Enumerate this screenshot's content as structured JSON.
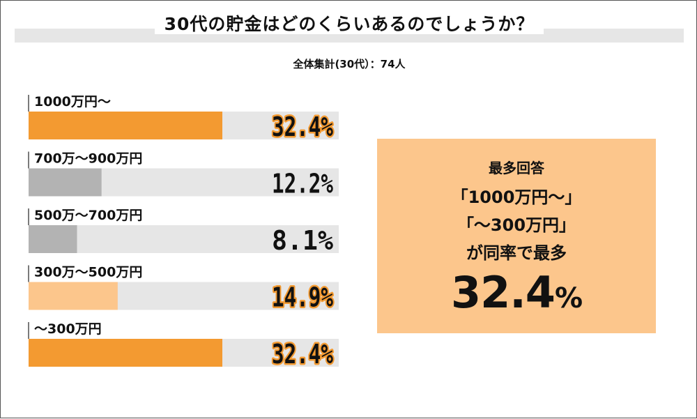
{
  "header": {
    "title": "30代の貯金はどのくらいあるのでしょうか？",
    "subtitle": "全体集計(30代）：74人"
  },
  "chart_data": {
    "type": "bar",
    "orientation": "horizontal",
    "title": "30代の貯金はどのくらいあるのでしょうか？",
    "subtitle": "全体集計(30代）：74人",
    "categories": [
      "1000万円～",
      "700万～900万円",
      "500万～700万円",
      "300万～500万円",
      "～300万円"
    ],
    "values": [
      32.4,
      12.2,
      8.1,
      14.9,
      32.4
    ],
    "value_labels": [
      "32.4%",
      "12.2%",
      "8.1%",
      "14.9%",
      "32.4%"
    ],
    "bar_colors": [
      "#f39a31",
      "#b3b3b3",
      "#b3b3b3",
      "#fcc68c",
      "#f39a31"
    ],
    "track_color": "#e6e6e6",
    "xlim": [
      0,
      50
    ],
    "grid": false,
    "legend": "none"
  },
  "callout": {
    "line1": "最多回答",
    "line2": "「1000万円～」",
    "line3": "「～300万円」",
    "line4": "が同率で最多",
    "value": "32.4",
    "unit": "%"
  },
  "colors": {
    "accent": "#f39a31",
    "light_accent": "#fcc68c",
    "gray_bar": "#b3b3b3",
    "track": "#e6e6e6",
    "highlight_outline": "#f39a31"
  }
}
